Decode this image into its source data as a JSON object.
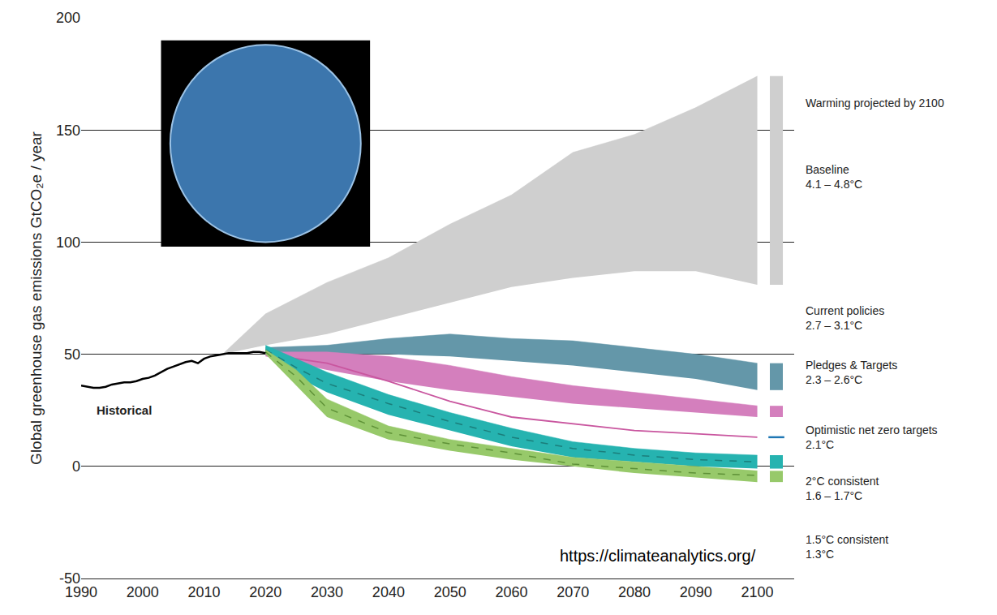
{
  "chart_data": {
    "type": "area",
    "y_label": "Global greenhouse gas emissions GtCO₂e / year",
    "heading": "Warming projected by 2100",
    "source": "https://climateanalytics.org/",
    "xlim": [
      1990,
      2106
    ],
    "xticks": [
      1990,
      2000,
      2010,
      2020,
      2030,
      2040,
      2050,
      2060,
      2070,
      2080,
      2090,
      2100
    ],
    "ylim": [
      -50,
      200
    ],
    "yticks": [
      -50,
      0,
      50,
      100,
      150,
      200
    ],
    "grid": true,
    "series": [
      {
        "name": "Baseline",
        "type": "band",
        "color": "#cfcfcf",
        "warming": "4.1 – 4.8°C",
        "x": [
          2013,
          2020,
          2030,
          2040,
          2050,
          2060,
          2070,
          2080,
          2090,
          2100
        ],
        "low": [
          50,
          54,
          59,
          66,
          73,
          80,
          84,
          87,
          87,
          81
        ],
        "high": [
          50,
          68,
          82,
          93,
          108,
          121,
          140,
          148,
          160,
          174
        ]
      },
      {
        "name": "Current policies",
        "type": "band",
        "color": "#6497a9",
        "warming": "2.7 – 3.1°C",
        "x": [
          2020,
          2030,
          2040,
          2050,
          2060,
          2070,
          2080,
          2090,
          2100
        ],
        "low": [
          50,
          50,
          50,
          49,
          47,
          45,
          42,
          39,
          34
        ],
        "high": [
          53,
          54,
          57,
          59,
          57,
          56,
          53,
          50,
          46
        ]
      },
      {
        "name": "Pledges & Targets",
        "type": "band",
        "color": "#d47fbd",
        "warming": "2.3 – 2.6°C",
        "x": [
          2020,
          2030,
          2040,
          2050,
          2060,
          2070,
          2080,
          2090,
          2100
        ],
        "low": [
          49,
          43,
          38,
          34,
          31,
          28,
          26,
          24,
          22
        ],
        "high": [
          51,
          51,
          49,
          45,
          40,
          36,
          33,
          30,
          27
        ]
      },
      {
        "name": "Optimistic net zero targets",
        "type": "line",
        "color": "#c9569f",
        "warming": "2.1°C",
        "x": [
          2020,
          2030,
          2040,
          2050,
          2060,
          2070,
          2080,
          2090,
          2100
        ],
        "values": [
          50,
          46,
          38,
          29,
          22,
          19,
          16,
          14.5,
          13
        ]
      },
      {
        "name": "2°C consistent",
        "type": "band",
        "color": "#26b3b0",
        "warming": "1.6 – 1.7°C",
        "line_style": "dash",
        "x": [
          2020,
          2025,
          2030,
          2040,
          2050,
          2060,
          2070,
          2080,
          2090,
          2100
        ],
        "low": [
          50,
          40,
          33,
          23,
          16,
          9,
          4,
          2,
          0,
          -1
        ],
        "high": [
          54,
          48,
          42,
          32,
          24,
          17,
          11,
          8,
          6,
          5
        ],
        "values": [
          52,
          44,
          37,
          28,
          20,
          13,
          8,
          5,
          3,
          2
        ]
      },
      {
        "name": "1.5°C consistent",
        "type": "band",
        "color": "#97c96a",
        "warming": "1.3°C",
        "line_style": "dash",
        "x": [
          2020,
          2025,
          2030,
          2040,
          2050,
          2060,
          2070,
          2080,
          2090,
          2100
        ],
        "low": [
          50,
          36,
          22,
          12,
          7,
          3,
          0,
          -3,
          -5,
          -7
        ],
        "high": [
          52,
          43,
          30,
          18,
          12,
          8,
          4,
          2,
          0,
          -2
        ],
        "values": [
          51,
          40,
          26,
          15,
          10,
          6,
          1,
          -1,
          -3,
          -4
        ]
      },
      {
        "name": "Historical",
        "type": "line",
        "color": "#000000",
        "x": [
          1990,
          1991,
          1992,
          1993,
          1994,
          1995,
          1996,
          1997,
          1998,
          1999,
          2000,
          2001,
          2002,
          2003,
          2004,
          2005,
          2006,
          2007,
          2008,
          2009,
          2010,
          2011,
          2012,
          2013,
          2014,
          2015,
          2016,
          2017,
          2018,
          2019,
          2020
        ],
        "values": [
          36,
          35.5,
          35,
          35,
          35.5,
          36.5,
          37,
          37.5,
          37.5,
          38,
          39,
          39.5,
          40.5,
          42,
          43.5,
          44.5,
          45.5,
          46.5,
          47,
          46,
          48,
          49,
          49.5,
          50,
          50.5,
          50.5,
          50.5,
          50.5,
          51,
          51,
          50.5
        ]
      }
    ]
  }
}
